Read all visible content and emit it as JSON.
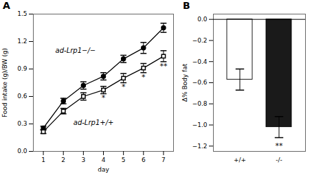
{
  "chart_data": [
    {
      "type": "line",
      "title": "A",
      "xlabel": "day",
      "ylabel": "Food intake (g)/BW (g)",
      "x": [
        1,
        2,
        3,
        4,
        5,
        6,
        7
      ],
      "series": [
        {
          "name": "ad-Lrp1−/−",
          "color": "black",
          "marker": "circle",
          "values": [
            0.255,
            0.55,
            0.72,
            0.82,
            1.01,
            1.13,
            1.35
          ],
          "errors": [
            0.02,
            0.03,
            0.04,
            0.04,
            0.04,
            0.06,
            0.05
          ]
        },
        {
          "name": "ad-Lrp1+/+",
          "color": "black",
          "marker": "open_square",
          "values": [
            0.215,
            0.44,
            0.6,
            0.67,
            0.8,
            0.91,
            1.04
          ],
          "errors": [
            0.02,
            0.03,
            0.04,
            0.04,
            0.05,
            0.05,
            0.06
          ]
        }
      ],
      "xlim": [
        0.5,
        7.5
      ],
      "xticks": [
        1,
        2,
        3,
        4,
        5,
        6,
        7
      ],
      "ylim": [
        0.0,
        1.5
      ],
      "yticks": [
        {
          "value": 0.0,
          "label": "0.0"
        },
        0.3,
        0.6,
        0.9,
        1.2,
        1.5
      ],
      "annotations": [
        {
          "text": "ad-Lrp1−/−",
          "x": 1.6,
          "y": 1.08
        },
        {
          "text": "ad-Lrp1+/+",
          "x": 2.5,
          "y": 0.29
        },
        {
          "text": "*",
          "x": 4
        },
        {
          "text": "*",
          "x": 5
        },
        {
          "text": "*",
          "x": 6
        },
        {
          "text": "**",
          "x": 7
        }
      ]
    },
    {
      "type": "bar",
      "title": "B",
      "ylabel": "Δ% Body fat",
      "categories": [
        "+/+",
        "-/-"
      ],
      "values": [
        -0.57,
        -1.02
      ],
      "errors": [
        0.1,
        0.1
      ],
      "colors": [
        "white",
        "#1a1a1a"
      ],
      "ylim": [
        -1.25,
        0.05
      ],
      "yticks": [
        {
          "value": -1.2,
          "label": "−1.2"
        },
        {
          "value": -1.0,
          "label": "−1.0"
        },
        {
          "value": -0.8,
          "label": "−0.8"
        },
        {
          "value": -0.6,
          "label": "−0.6"
        },
        {
          "value": -0.4,
          "label": "−0.4"
        },
        {
          "value": -0.2,
          "label": "−0.2"
        },
        {
          "value": -0.0,
          "label": "0.0"
        }
      ],
      "annotations": [
        {
          "text": "**",
          "x": "-/-",
          "y": -1.22
        }
      ]
    }
  ]
}
